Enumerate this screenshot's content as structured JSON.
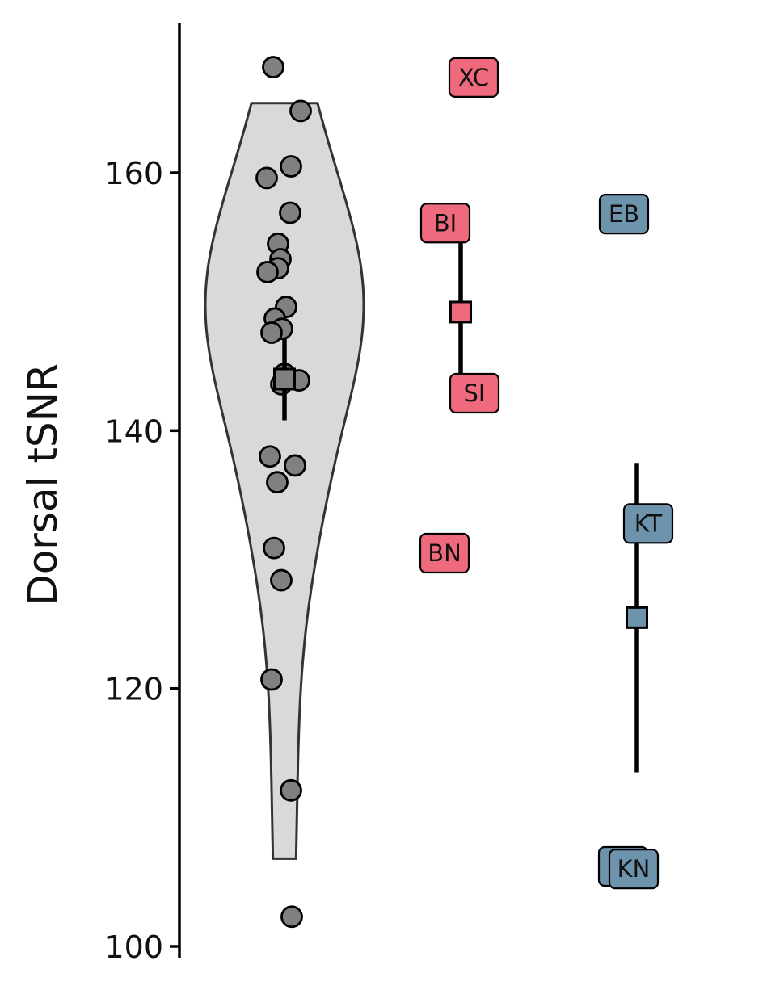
{
  "chart_data": {
    "type": "scatter",
    "title": "",
    "xlabel": "",
    "ylabel": "Dorsal tSNR",
    "ylim": [
      99,
      172
    ],
    "yticks": [
      100,
      120,
      140,
      160
    ],
    "grid": false,
    "legend": "none",
    "colors": {
      "violin_fill": "#d9d9d9",
      "violin_stroke": "#333333",
      "point_fill": "#808080",
      "group_a": "#ee6a7c",
      "group_b": "#6e93ad",
      "errorbar": "#000000"
    },
    "distribution": {
      "points": [
        168.2,
        164.8,
        160.5,
        159.6,
        156.9,
        154.5,
        153.3,
        152.6,
        152.3,
        149.6,
        148.7,
        147.9,
        147.6,
        144.4,
        143.9,
        143.6,
        138.0,
        137.3,
        136.0,
        130.9,
        128.4,
        120.7,
        112.1,
        102.3
      ],
      "mean": 144.0,
      "ci": [
        140.8,
        147.2
      ]
    },
    "group_a": {
      "labels": [
        {
          "text": "XC",
          "y": 167.4
        },
        {
          "text": "BI",
          "y": 156.1
        },
        {
          "text": "SI",
          "y": 142.9
        },
        {
          "text": "BN",
          "y": 130.5
        }
      ],
      "mean": 149.2,
      "range": [
        143.8,
        155.2
      ]
    },
    "group_b": {
      "labels": [
        {
          "text": "EB",
          "y": 156.8
        },
        {
          "text": "KT",
          "y": 132.8
        },
        {
          "text": "",
          "y": 106.2
        },
        {
          "text": "KN",
          "y": 106.0
        }
      ],
      "mean": 125.5,
      "range": [
        113.5,
        137.5
      ]
    }
  }
}
